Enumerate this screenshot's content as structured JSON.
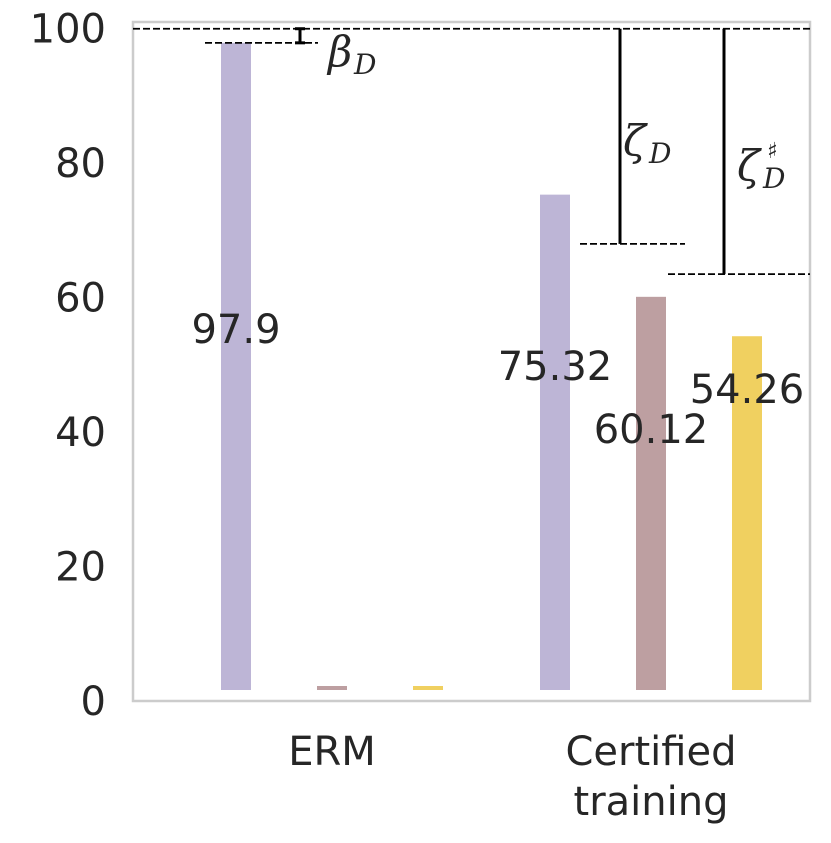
{
  "chart_data": {
    "type": "bar",
    "categories": [
      "ERM",
      "Certified\ntraining"
    ],
    "series": [
      {
        "color": "#bdb5d6",
        "values": [
          97.9,
          75.32
        ]
      },
      {
        "color": "#bd9fa1",
        "values": [
          0.8,
          60.12
        ]
      },
      {
        "color": "#f0d060",
        "values": [
          0.8,
          54.26
        ]
      }
    ],
    "data_labels": [
      {
        "series": 0,
        "category": 0,
        "text": "97.9"
      },
      {
        "series": 0,
        "category": 1,
        "text": "75.32"
      },
      {
        "series": 1,
        "category": 1,
        "text": "60.12"
      },
      {
        "series": 2,
        "category": 1,
        "text": "54.26"
      }
    ],
    "yticks": [
      0,
      20,
      40,
      60,
      80,
      100
    ],
    "ylim": [
      0,
      101
    ],
    "reference_line": 100,
    "annotations": [
      {
        "symbol": "β",
        "subscript": "D",
        "superscript": "",
        "from": 97.9,
        "to": 100
      },
      {
        "symbol": "ζ",
        "subscript": "D",
        "superscript": "",
        "from": 68,
        "to": 100
      },
      {
        "symbol": "ζ",
        "subscript": "D",
        "superscript": "♯",
        "from": 63.5,
        "to": 100
      }
    ],
    "grid": false
  }
}
